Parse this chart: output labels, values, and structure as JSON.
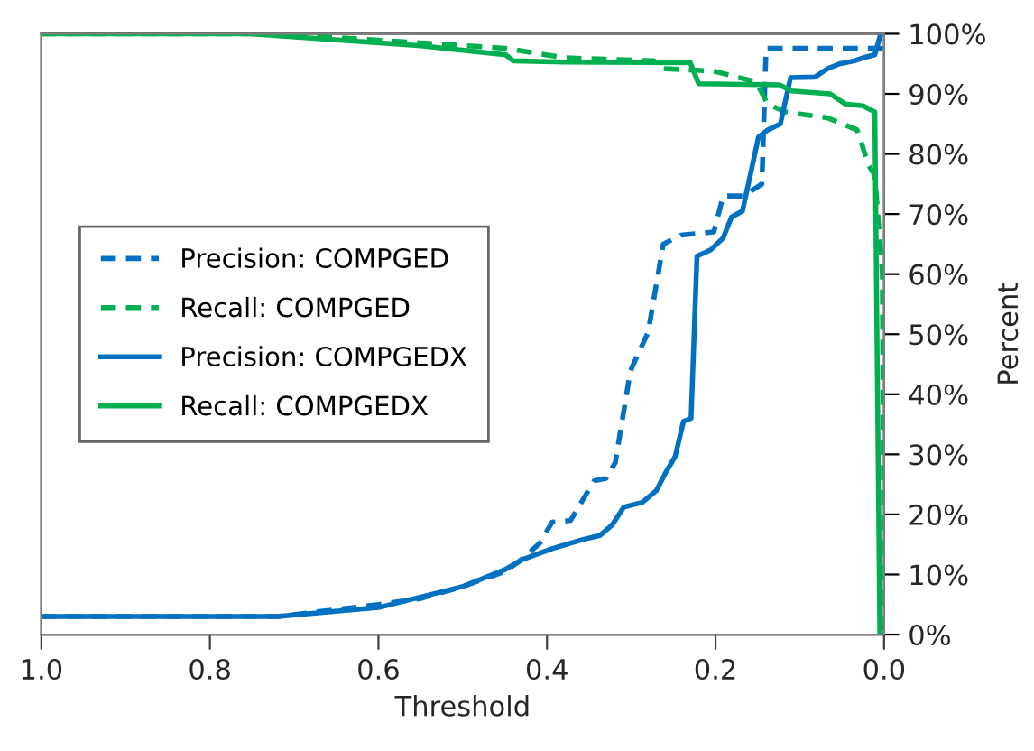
{
  "chart_data": {
    "type": "line",
    "xlabel": "Threshold",
    "y2label": "Percent",
    "xlim": [
      1.0,
      0.0
    ],
    "xticks": [
      {
        "value": 1.0,
        "label": "1.0"
      },
      {
        "value": 0.8,
        "label": "0.8"
      },
      {
        "value": 0.6,
        "label": "0.6"
      },
      {
        "value": 0.4,
        "label": "0.4"
      },
      {
        "value": 0.2,
        "label": "0.2"
      },
      {
        "value": 0.0,
        "label": "0.0"
      }
    ],
    "y2lim": [
      0,
      100
    ],
    "y2ticks": [
      {
        "value": 0,
        "label": "0%"
      },
      {
        "value": 10,
        "label": "10%"
      },
      {
        "value": 20,
        "label": "20%"
      },
      {
        "value": 30,
        "label": "30%"
      },
      {
        "value": 40,
        "label": "40%"
      },
      {
        "value": 50,
        "label": "50%"
      },
      {
        "value": 60,
        "label": "60%"
      },
      {
        "value": 70,
        "label": "70%"
      },
      {
        "value": 80,
        "label": "80%"
      },
      {
        "value": 90,
        "label": "90%"
      },
      {
        "value": 100,
        "label": "100%"
      }
    ],
    "grid": false,
    "legend": "center left",
    "marker": "none",
    "series": [
      {
        "name": "Precision: COMPGED",
        "color": "#0070c0",
        "line_style": "dashed",
        "axis": "y2",
        "x": [
          1.0,
          0.72,
          0.6,
          0.55,
          0.5,
          0.45,
          0.43,
          0.408,
          0.394,
          0.372,
          0.344,
          0.33,
          0.319,
          0.301,
          0.28,
          0.262,
          0.241,
          0.202,
          0.191,
          0.167,
          0.145,
          0.14,
          0.004,
          0.0
        ],
        "values": [
          3,
          3,
          5,
          6,
          8,
          10.5,
          12.5,
          15.3,
          18.7,
          19,
          25.6,
          26,
          28.6,
          43.9,
          50.3,
          65,
          66.5,
          67,
          73,
          73,
          75,
          97.6,
          97.6,
          100
        ]
      },
      {
        "name": "Recall: COMPGED",
        "color": "#00b050",
        "line_style": "dashed",
        "axis": "y2",
        "x": [
          1.0,
          0.72,
          0.55,
          0.45,
          0.379,
          0.273,
          0.262,
          0.202,
          0.152,
          0.138,
          0.117,
          0.067,
          0.032,
          0.018,
          0.011,
          0.002,
          0.0
        ],
        "values": [
          100,
          100,
          98.5,
          97.6,
          96,
          95.5,
          94.2,
          93.8,
          92,
          88.3,
          87,
          86,
          84,
          78,
          76.5,
          60,
          0
        ]
      },
      {
        "name": "Precision: COMPGEDX",
        "color": "#0070c0",
        "line_style": "solid",
        "axis": "y2",
        "x": [
          1.0,
          0.72,
          0.6,
          0.5,
          0.45,
          0.429,
          0.394,
          0.358,
          0.337,
          0.323,
          0.309,
          0.287,
          0.27,
          0.259,
          0.248,
          0.238,
          0.229,
          0.222,
          0.206,
          0.191,
          0.181,
          0.168,
          0.149,
          0.138,
          0.123,
          0.111,
          0.082,
          0.067,
          0.053,
          0.035,
          0.025,
          0.011,
          0.004,
          0.0
        ],
        "values": [
          3,
          3,
          4.5,
          8,
          10.8,
          12.5,
          14.3,
          15.8,
          16.5,
          18.2,
          21.2,
          22,
          24,
          27,
          29.6,
          35.5,
          36,
          63,
          64,
          66,
          69.5,
          70.5,
          82.8,
          84,
          85,
          92.7,
          92.8,
          94.2,
          95,
          95.5,
          96,
          96.5,
          100,
          100
        ]
      },
      {
        "name": "Recall: COMPGEDX",
        "color": "#00b050",
        "line_style": "solid",
        "axis": "y2",
        "x": [
          1.0,
          0.753,
          0.549,
          0.449,
          0.44,
          0.379,
          0.23,
          0.22,
          0.124,
          0.11,
          0.064,
          0.046,
          0.025,
          0.011,
          0.005,
          0.0
        ],
        "values": [
          100,
          100,
          98,
          96.5,
          95.5,
          95.3,
          95.2,
          91.7,
          91.5,
          90.5,
          90,
          88.3,
          88,
          87,
          0,
          0
        ]
      }
    ]
  }
}
